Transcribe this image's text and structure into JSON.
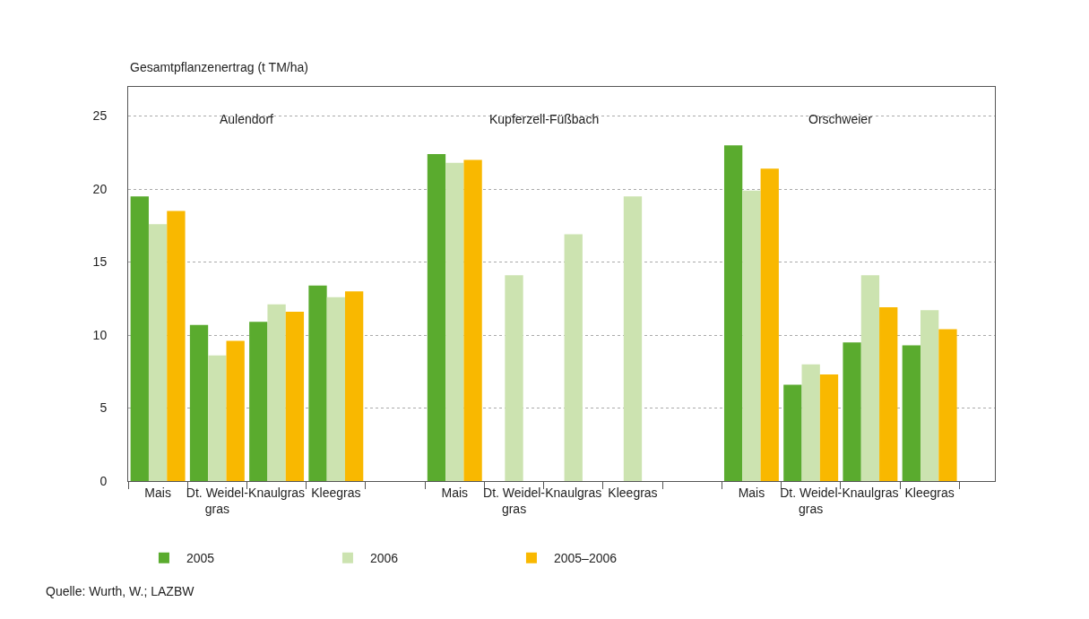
{
  "chart_data": {
    "type": "bar",
    "ylabel": "Gesamtpflanzenertrag (t TM/ha)",
    "categories": [
      "Mais",
      "Dt. Weidel-\ngras",
      "Knaulgras",
      "Kleegras",
      null,
      "Mais",
      "Dt. Weidel-\ngras",
      "Knaulgras",
      "Kleegras",
      null,
      "Mais",
      "Dt. Weidel-\ngras",
      "Knaulgras",
      "Kleegras"
    ],
    "series": [
      {
        "name": "2005",
        "color": "#5aab2e",
        "values": [
          19.5,
          10.7,
          10.9,
          13.4,
          null,
          22.4,
          null,
          null,
          null,
          null,
          23.0,
          6.6,
          9.5,
          9.3
        ]
      },
      {
        "name": "2006",
        "color": "#cce3b0",
        "values": [
          17.6,
          8.6,
          12.1,
          12.6,
          null,
          21.8,
          14.1,
          16.9,
          19.5,
          null,
          19.9,
          8.0,
          14.1,
          11.7
        ]
      },
      {
        "name": "2005–2006",
        "color": "#f9b800",
        "values": [
          18.5,
          9.6,
          11.6,
          13.0,
          null,
          22.0,
          null,
          null,
          null,
          null,
          21.4,
          7.3,
          11.9,
          10.4
        ]
      }
    ],
    "annotations": [
      "Aulendorf",
      "Kupferzell-Füßbach",
      "Orschweier",
      "Quelle: Wurth, W.; LAZBW"
    ],
    "ylim": [
      0,
      27
    ],
    "yticks": [
      0,
      5,
      10,
      15,
      20,
      25
    ],
    "grid": "y",
    "legend": "bottom left"
  }
}
